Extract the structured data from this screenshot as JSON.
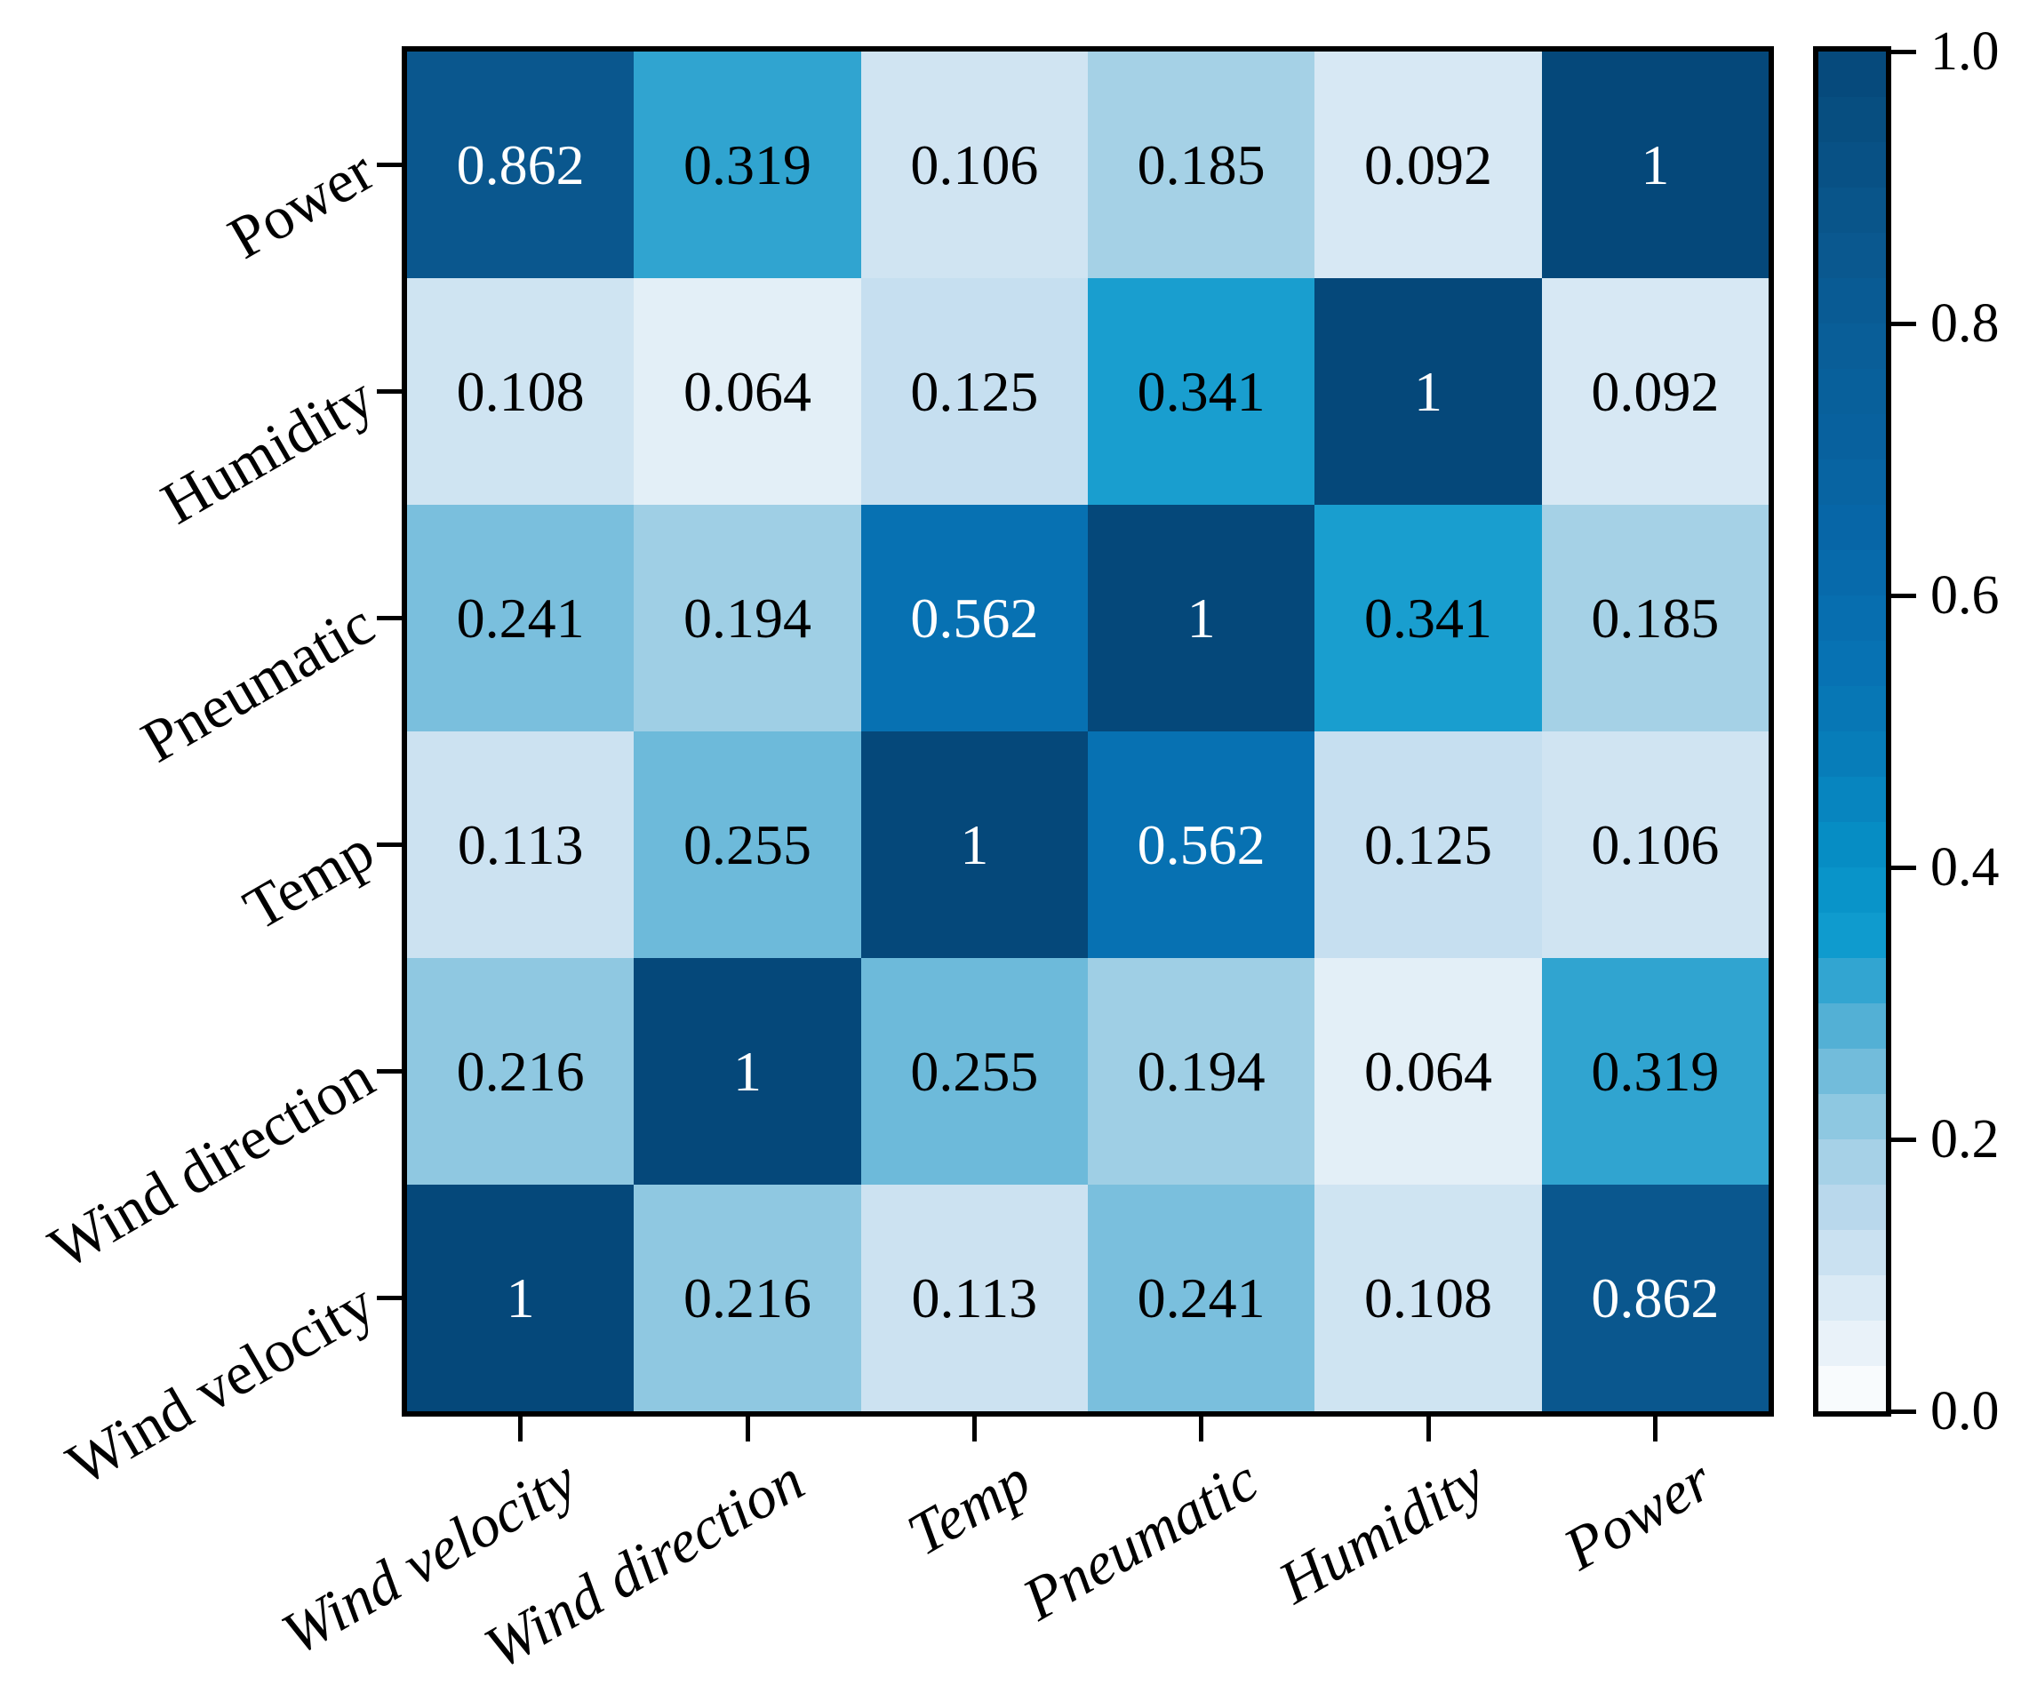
{
  "figure": {
    "background": "#ffffff"
  },
  "chart_data": {
    "type": "heatmap",
    "title": "",
    "x_categories": [
      "Wind velocity",
      "Wind direction",
      "Temp",
      "Pneumatic",
      "Humidity",
      "Power"
    ],
    "y_categories": [
      "Power",
      "Humidity",
      "Pneumatic",
      "Temp",
      "Wind direction",
      "Wind velocity"
    ],
    "matrix": [
      [
        0.862,
        0.319,
        0.106,
        0.185,
        0.092,
        1
      ],
      [
        0.108,
        0.064,
        0.125,
        0.341,
        1,
        0.092
      ],
      [
        0.241,
        0.194,
        0.562,
        1,
        0.341,
        0.185
      ],
      [
        0.113,
        0.255,
        1,
        0.562,
        0.125,
        0.106
      ],
      [
        0.216,
        1,
        0.255,
        0.194,
        0.064,
        0.319
      ],
      [
        1,
        0.216,
        0.113,
        0.241,
        0.108,
        0.862
      ]
    ],
    "value_range": [
      0,
      1
    ],
    "grid": false,
    "legend_position": "right",
    "colorbar": {
      "tick_labels": [
        "1.0",
        "0.8",
        "0.6",
        "0.4",
        "0.2",
        "0.0"
      ],
      "tick_values": [
        1.0,
        0.8,
        0.6,
        0.4,
        0.2,
        0.0
      ],
      "levels": 30
    },
    "colormap": {
      "name": "white-to-navy-blues",
      "stops": [
        [
          0.0,
          "#ffffff"
        ],
        [
          0.05,
          "#e9f2f9"
        ],
        [
          0.1,
          "#d3e6f3"
        ],
        [
          0.15,
          "#b9d8ec"
        ],
        [
          0.2,
          "#9ccee4"
        ],
        [
          0.25,
          "#72bcdb"
        ],
        [
          0.3,
          "#44aad2"
        ],
        [
          0.35,
          "#0f9bce"
        ],
        [
          0.4,
          "#0691c7"
        ],
        [
          0.45,
          "#0785bf"
        ],
        [
          0.5,
          "#0779b6"
        ],
        [
          0.56,
          "#0771b2"
        ],
        [
          0.63,
          "#0768a9"
        ],
        [
          0.72,
          "#08619e"
        ],
        [
          0.8,
          "#095d96"
        ],
        [
          0.86,
          "#0a578e"
        ],
        [
          0.93,
          "#085083"
        ],
        [
          1.0,
          "#05487a"
        ]
      ]
    },
    "annotation": {
      "light_text_color": "#ffffff",
      "dark_text_color": "#000000",
      "white_text_threshold": 0.5
    },
    "axis_color": "#000000"
  }
}
